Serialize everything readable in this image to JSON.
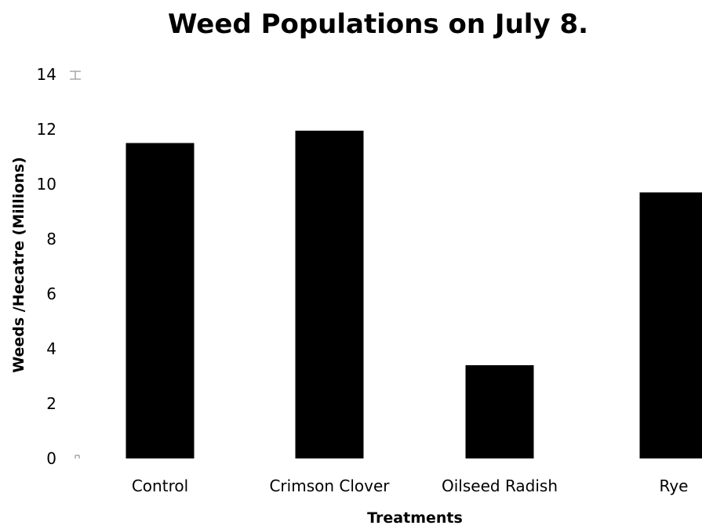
{
  "chart_data": {
    "type": "bar",
    "title": "Weed Populations on July 8.",
    "xlabel": "Treatments",
    "ylabel": "Weeds /Hecatre (Millions)",
    "categories": [
      "Control",
      "Crimson Clover",
      "Oilseed Radish",
      "Rye"
    ],
    "values": [
      11.5,
      11.95,
      3.4,
      9.7
    ],
    "ylim": [
      0,
      14
    ],
    "yticks": [
      "0",
      "2",
      "4",
      "6",
      "8",
      "10",
      "12",
      "14"
    ],
    "grid": false,
    "legend": "none",
    "bar_color": "#000000"
  }
}
